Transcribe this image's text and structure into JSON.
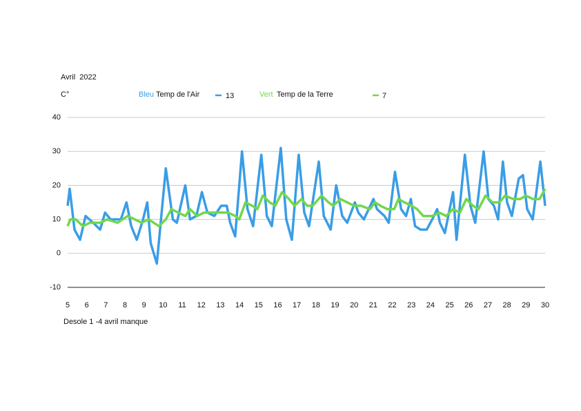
{
  "chart_data": {
    "type": "line",
    "title": "Avril  2022",
    "y_label": "C°",
    "footnote": "Desole 1 -4 avril manque",
    "xlim": [
      5,
      30
    ],
    "xticks": [
      5,
      6,
      7,
      8,
      9,
      10,
      11,
      12,
      13,
      14,
      15,
      16,
      17,
      18,
      19,
      20,
      21,
      22,
      23,
      24,
      25,
      26,
      27,
      28,
      29,
      30
    ],
    "ylim": [
      -10,
      40
    ],
    "yticks": [
      -10,
      0,
      10,
      20,
      30,
      40
    ],
    "grid": true,
    "series": [
      {
        "name": "Temp de l'Air",
        "color_name": "Bleu",
        "legend_label": "13",
        "color": "#3a9de6",
        "x": [
          5,
          5.11,
          5.36,
          5.65,
          5.94,
          6.34,
          6.7,
          6.96,
          7.25,
          7.79,
          8.08,
          8.33,
          8.62,
          8.95,
          9.17,
          9.35,
          9.67,
          10.14,
          10.51,
          10.72,
          11.16,
          11.41,
          11.74,
          12.03,
          12.32,
          12.68,
          13.04,
          13.33,
          13.51,
          13.77,
          14.13,
          14.42,
          14.71,
          15.14,
          15.43,
          15.69,
          16.16,
          16.45,
          16.74,
          17.1,
          17.39,
          17.64,
          18.15,
          18.41,
          18.77,
          19.06,
          19.38,
          19.64,
          20.04,
          20.22,
          20.51,
          21.01,
          21.2,
          21.59,
          21.81,
          22.14,
          22.46,
          22.72,
          22.97,
          23.19,
          23.48,
          23.8,
          24.09,
          24.35,
          24.49,
          24.75,
          25.18,
          25.36,
          25.8,
          26.09,
          26.34,
          26.78,
          27.03,
          27.32,
          27.54,
          27.79,
          28.01,
          28.26,
          28.62,
          28.84,
          29.06,
          29.35,
          29.75,
          30
        ],
        "values": [
          14,
          19,
          7,
          4,
          11,
          9,
          7,
          12,
          10,
          10,
          15,
          8,
          4,
          10,
          15,
          3,
          -3,
          25,
          10,
          9,
          20,
          10,
          11,
          18,
          12,
          11,
          14,
          14,
          9,
          5,
          30,
          13,
          8,
          29,
          11,
          8,
          31,
          10,
          4,
          29,
          12,
          8,
          27,
          11,
          7,
          20,
          11,
          9,
          15,
          12,
          10,
          16,
          13,
          11,
          9,
          24,
          13,
          11,
          16,
          8,
          7,
          7,
          10,
          13,
          9,
          6,
          18,
          4,
          29,
          14,
          9,
          30,
          16,
          14,
          10,
          27,
          15,
          11,
          22,
          23,
          13,
          10,
          27,
          14
        ]
      },
      {
        "name": "Temp de la Terre",
        "color_name": "Vert",
        "legend_label": "7",
        "color": "#6fd84c",
        "x": [
          5,
          5.14,
          5.43,
          5.8,
          6.16,
          6.7,
          7.07,
          7.61,
          8.15,
          8.51,
          8.88,
          9.24,
          9.78,
          10.14,
          10.43,
          10.8,
          11.16,
          11.41,
          11.78,
          12.14,
          12.68,
          13.41,
          13.77,
          13.99,
          14.31,
          14.67,
          14.93,
          15.22,
          15.58,
          15.87,
          16.23,
          16.59,
          16.88,
          17.25,
          17.54,
          17.83,
          18.3,
          18.66,
          18.91,
          19.28,
          19.64,
          20,
          20.36,
          20.83,
          21.09,
          21.38,
          21.74,
          22.1,
          22.32,
          22.64,
          23.01,
          23.3,
          23.62,
          24.09,
          24.46,
          24.82,
          25.18,
          25.54,
          25.87,
          26.22,
          26.51,
          26.88,
          27.25,
          27.61,
          27.9,
          28.33,
          28.7,
          28.99,
          29.35,
          29.71,
          30
        ],
        "values": [
          8,
          10,
          10,
          8,
          9,
          9,
          10,
          9,
          11,
          10,
          9,
          10,
          8,
          10,
          13,
          12,
          11,
          13,
          11,
          12,
          12,
          12,
          11,
          10,
          15,
          14,
          13,
          17,
          15,
          14,
          18,
          16,
          14,
          16,
          14,
          14,
          17,
          15,
          14,
          16,
          15,
          14,
          14,
          13,
          15,
          14,
          13,
          13,
          16,
          15,
          14,
          13,
          11,
          11,
          12,
          11,
          13,
          12,
          16,
          14,
          13,
          17,
          15,
          15,
          17,
          16,
          16,
          17,
          16,
          16,
          19
        ]
      }
    ]
  }
}
